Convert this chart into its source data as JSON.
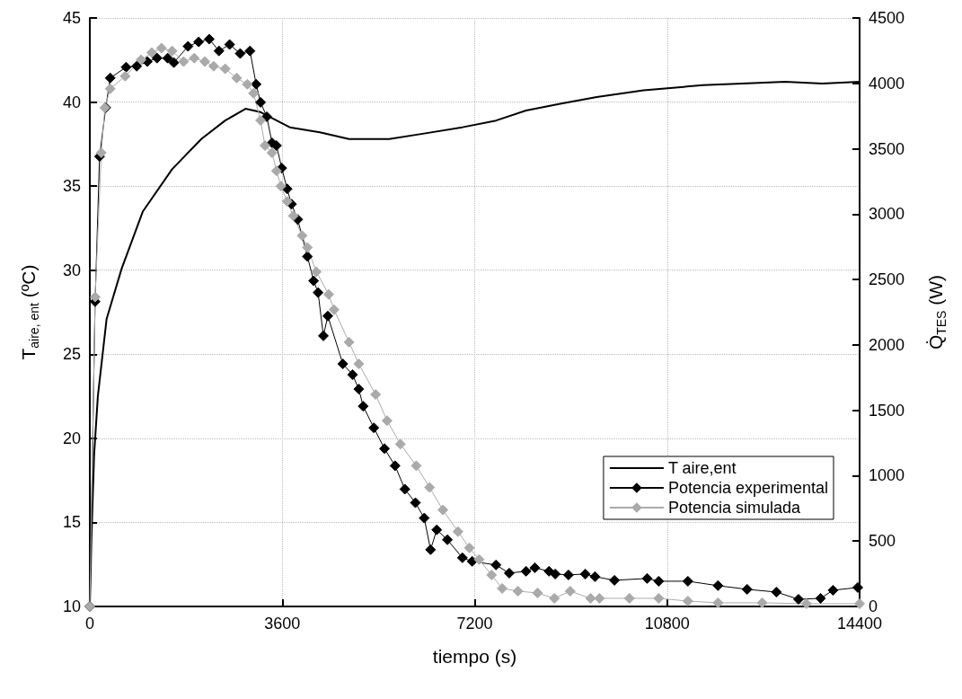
{
  "chart_data": {
    "type": "line",
    "xlabel": "tiempo (s)",
    "ylabel": "T$_{aire, ent}$ (ºC)",
    "y2label": "Q̇$_{TES}$ (W)",
    "xlim": [
      0,
      14400
    ],
    "xticks": [
      0,
      3600,
      7200,
      10800,
      14400
    ],
    "ylim": [
      10,
      45
    ],
    "yticks": [
      10,
      15,
      20,
      25,
      30,
      35,
      40,
      45
    ],
    "y2lim": [
      0,
      4500
    ],
    "y2ticks": [
      0,
      500,
      1000,
      1500,
      2000,
      2500,
      3000,
      3500,
      4000,
      4500
    ],
    "grid": true,
    "legend": "bottom right",
    "series": [
      {
        "name": "T aire,ent",
        "color": "#000000",
        "marker": "none",
        "x": [
          0,
          30,
          80,
          150,
          314,
          596,
          993,
          1539,
          2085,
          2532,
          2913,
          3194,
          3740,
          4303,
          4849,
          5312,
          5600,
          6200,
          6970,
          7600,
          8160,
          8800,
          9483,
          10360,
          11470,
          12200,
          13008,
          13700,
          14400
        ],
        "values": [
          10,
          14,
          19,
          22.5,
          27.1,
          30.1,
          33.5,
          36,
          37.8,
          38.9,
          39.6,
          39.4,
          38.5,
          38.2,
          37.8,
          37.8,
          37.8,
          38.1,
          38.5,
          38.9,
          39.5,
          39.9,
          40.3,
          40.7,
          41,
          41.1,
          41.2,
          41.1,
          41.2
        ]
      },
      {
        "name": "Potencia experimental",
        "color": "#000000",
        "marker": "diamond",
        "axis": "y2",
        "x": [
          0,
          99,
          182,
          298,
          381,
          679,
          877,
          1076,
          1258,
          1456,
          1572,
          1837,
          2036,
          2234,
          2416,
          2615,
          2813,
          2996,
          3111,
          3194,
          3310,
          3409,
          3492,
          3591,
          3691,
          3773,
          3889,
          4071,
          4187,
          4270,
          4369,
          4452,
          4733,
          4915,
          5031,
          5114,
          5313,
          5512,
          5710,
          5893,
          6091,
          6256,
          6374,
          6490,
          6689,
          6970,
          7152,
          7598,
          7846,
          8160,
          8325,
          8590,
          8706,
          8954,
          9268,
          9450,
          9814,
          10426,
          10641,
          11188,
          11750,
          12296,
          12843,
          13257,
          13670,
          13902,
          14366
        ],
        "values": [
          0,
          2331,
          3441,
          3814,
          4041,
          4124,
          4131,
          4166,
          4193,
          4193,
          4159,
          4283,
          4317,
          4338,
          4248,
          4297,
          4228,
          4248,
          3993,
          3855,
          3745,
          3545,
          3524,
          3352,
          3193,
          3076,
          2959,
          2676,
          2490,
          2400,
          2069,
          2221,
          1855,
          1772,
          1662,
          1531,
          1366,
          1207,
          1076,
          897,
          793,
          676,
          434,
          586,
          510,
          372,
          345,
          317,
          255,
          269,
          296,
          269,
          248,
          241,
          248,
          228,
          200,
          214,
          193,
          193,
          159,
          131,
          110,
          55,
          62,
          124,
          145
        ]
      },
      {
        "name": "Potencia simulada",
        "color": "#aaaaaa",
        "marker": "diamond",
        "axis": "y2",
        "x": [
          0,
          99,
          215,
          281,
          381,
          662,
          960,
          1158,
          1340,
          1539,
          1754,
          1953,
          2151,
          2317,
          2532,
          2747,
          2946,
          3062,
          3194,
          3277,
          3409,
          3492,
          3575,
          3691,
          3807,
          3972,
          4071,
          4237,
          4469,
          4568,
          4849,
          5031,
          5346,
          5561,
          5810,
          6107,
          6356,
          6605,
          6887,
          7100,
          7283,
          7515,
          7714,
          8010,
          8375,
          8690,
          8987,
          9367,
          9533,
          10095,
          10641,
          11188,
          11750,
          12578,
          13406,
          14400
        ],
        "values": [
          0,
          2366,
          3469,
          3814,
          3959,
          4055,
          4180,
          4235,
          4269,
          4248,
          4166,
          4193,
          4166,
          4131,
          4111,
          4041,
          3993,
          3924,
          3717,
          3524,
          3469,
          3331,
          3214,
          3097,
          2986,
          2835,
          2745,
          2559,
          2386,
          2269,
          2021,
          1855,
          1621,
          1421,
          1241,
          1076,
          910,
          738,
          572,
          448,
          359,
          241,
          138,
          117,
          103,
          62,
          117,
          62,
          62,
          62,
          62,
          41,
          28,
          28,
          21,
          21
        ]
      }
    ]
  }
}
